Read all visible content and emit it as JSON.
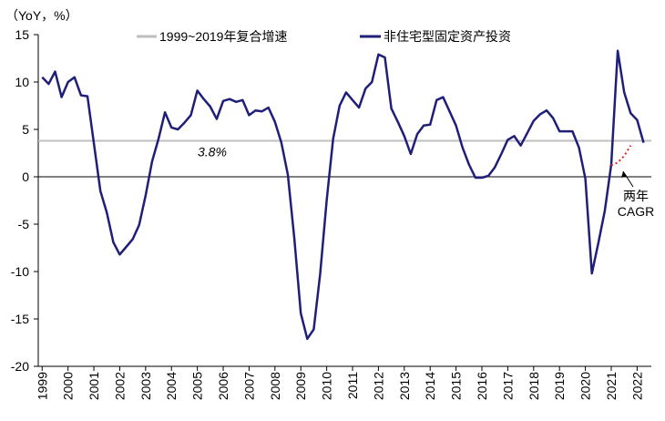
{
  "chart_data": {
    "type": "line",
    "y_axis_label": "（YoY，%）",
    "xlim": [
      1998.85,
      2022.55
    ],
    "xticks": [
      1999,
      2000,
      2001,
      2002,
      2003,
      2004,
      2005,
      2006,
      2007,
      2008,
      2009,
      2010,
      2011,
      2012,
      2013,
      2014,
      2015,
      2016,
      2017,
      2018,
      2019,
      2020,
      2021,
      2022
    ],
    "ylim": [
      -20,
      15
    ],
    "yticks": [
      -20,
      -15,
      -10,
      -5,
      0,
      5,
      10,
      15
    ],
    "reference_line": {
      "name": "1999~2019年复合增速",
      "value": 3.8,
      "value_label": "3.8%",
      "color": "#bfbfbf"
    },
    "series": [
      {
        "name": "非住宅型固定资产投资",
        "color": "#1f1f7a",
        "x": [
          1999.0,
          1999.25,
          1999.5,
          1999.75,
          2000.0,
          2000.25,
          2000.5,
          2000.75,
          2001.0,
          2001.25,
          2001.5,
          2001.75,
          2002.0,
          2002.25,
          2002.5,
          2002.75,
          2003.0,
          2003.25,
          2003.5,
          2003.75,
          2004.0,
          2004.25,
          2004.5,
          2004.75,
          2005.0,
          2005.25,
          2005.5,
          2005.75,
          2006.0,
          2006.25,
          2006.5,
          2006.75,
          2007.0,
          2007.25,
          2007.5,
          2007.75,
          2008.0,
          2008.25,
          2008.5,
          2008.75,
          2009.0,
          2009.25,
          2009.5,
          2009.75,
          2010.0,
          2010.25,
          2010.5,
          2010.75,
          2011.0,
          2011.25,
          2011.5,
          2011.75,
          2012.0,
          2012.25,
          2012.5,
          2012.75,
          2013.0,
          2013.25,
          2013.5,
          2013.75,
          2014.0,
          2014.25,
          2014.5,
          2014.75,
          2015.0,
          2015.25,
          2015.5,
          2015.75,
          2016.0,
          2016.25,
          2016.5,
          2016.75,
          2017.0,
          2017.25,
          2017.5,
          2017.75,
          2018.0,
          2018.25,
          2018.5,
          2018.75,
          2019.0,
          2019.25,
          2019.5,
          2019.75,
          2020.0,
          2020.25,
          2020.5,
          2020.75,
          2021.0,
          2021.25,
          2021.5,
          2021.75,
          2022.0,
          2022.25
        ],
        "values": [
          10.5,
          9.8,
          11.1,
          8.4,
          10.0,
          10.5,
          8.6,
          8.5,
          3.5,
          -1.5,
          -3.8,
          -6.9,
          -8.2,
          -7.4,
          -6.6,
          -5.1,
          -2.0,
          1.6,
          4.0,
          6.8,
          5.2,
          5.0,
          5.7,
          6.5,
          9.1,
          8.2,
          7.4,
          6.1,
          8.0,
          8.2,
          7.9,
          8.1,
          6.5,
          7.0,
          6.9,
          7.3,
          5.8,
          3.6,
          0.2,
          -6.5,
          -14.4,
          -17.1,
          -16.1,
          -10.2,
          -2.5,
          4.0,
          7.5,
          8.9,
          8.1,
          7.3,
          9.3,
          10.0,
          12.9,
          12.6,
          7.2,
          5.8,
          4.3,
          2.4,
          4.5,
          5.4,
          5.5,
          8.1,
          8.4,
          6.9,
          5.4,
          3.1,
          1.3,
          -0.1,
          -0.1,
          0.1,
          1.0,
          2.4,
          3.9,
          4.3,
          3.3,
          4.6,
          5.9,
          6.6,
          7.0,
          6.2,
          4.8,
          4.8,
          4.8,
          3.1,
          -0.2,
          -10.2,
          -7.0,
          -3.6,
          1.3,
          13.3,
          8.9,
          6.7,
          6.0,
          3.6
        ]
      },
      {
        "color": "#e0201b",
        "dotted": true,
        "x": [
          2021.0,
          2021.25,
          2021.5,
          2021.75
        ],
        "values": [
          1.2,
          1.5,
          2.2,
          3.3
        ]
      }
    ],
    "annotation": [
      "两年",
      "CAGR"
    ]
  }
}
